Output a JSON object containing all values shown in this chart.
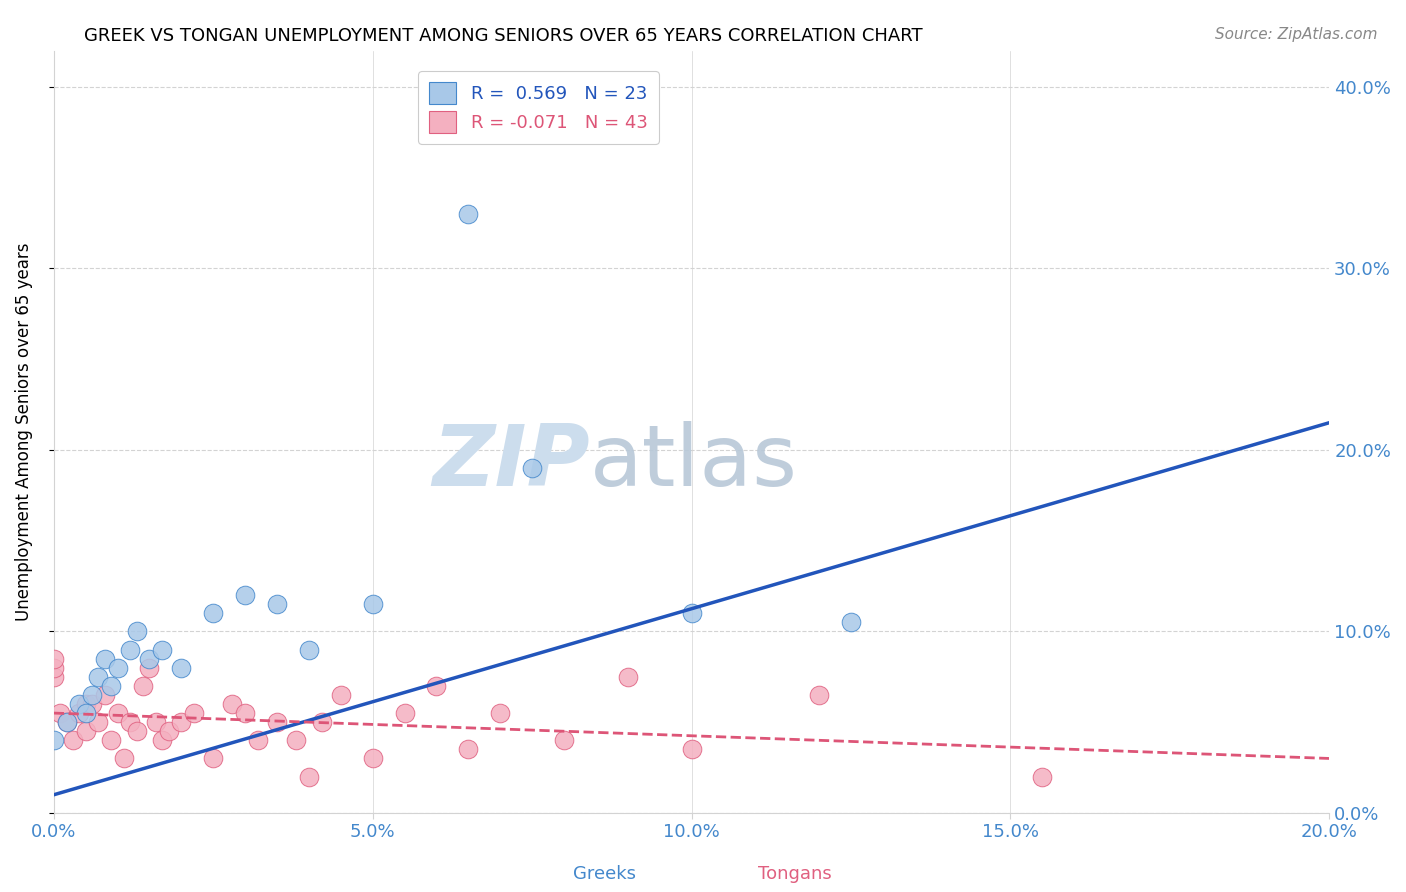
{
  "title": "GREEK VS TONGAN UNEMPLOYMENT AMONG SENIORS OVER 65 YEARS CORRELATION CHART",
  "source": "Source: ZipAtlas.com",
  "ylabel": "Unemployment Among Seniors over 65 years",
  "xlim": [
    0.0,
    0.2
  ],
  "ylim": [
    0.0,
    0.42
  ],
  "xticks": [
    0.0,
    0.05,
    0.1,
    0.15,
    0.2
  ],
  "yticks": [
    0.0,
    0.1,
    0.2,
    0.3,
    0.4
  ],
  "greek_color": "#a8c8e8",
  "tongan_color": "#f4b0c0",
  "greek_edge_color": "#4488cc",
  "tongan_edge_color": "#e06080",
  "greek_line_color": "#2255bb",
  "tongan_line_color": "#dd5577",
  "tick_color": "#4488cc",
  "greek_R": 0.569,
  "greek_N": 23,
  "tongan_R": -0.071,
  "tongan_N": 43,
  "watermark_zip": "ZIP",
  "watermark_atlas": "atlas",
  "watermark_color": "#ccdded",
  "greek_scatter_x": [
    0.0,
    0.002,
    0.004,
    0.005,
    0.006,
    0.007,
    0.008,
    0.009,
    0.01,
    0.012,
    0.013,
    0.015,
    0.017,
    0.02,
    0.025,
    0.03,
    0.035,
    0.04,
    0.05,
    0.065,
    0.075,
    0.1,
    0.125
  ],
  "greek_scatter_y": [
    0.04,
    0.05,
    0.06,
    0.055,
    0.065,
    0.075,
    0.085,
    0.07,
    0.08,
    0.09,
    0.1,
    0.085,
    0.09,
    0.08,
    0.11,
    0.12,
    0.115,
    0.09,
    0.115,
    0.33,
    0.19,
    0.11,
    0.105
  ],
  "tongan_scatter_x": [
    0.0,
    0.0,
    0.0,
    0.001,
    0.002,
    0.003,
    0.004,
    0.005,
    0.005,
    0.006,
    0.007,
    0.008,
    0.009,
    0.01,
    0.011,
    0.012,
    0.013,
    0.014,
    0.015,
    0.016,
    0.017,
    0.018,
    0.02,
    0.022,
    0.025,
    0.028,
    0.03,
    0.032,
    0.035,
    0.038,
    0.04,
    0.042,
    0.045,
    0.05,
    0.055,
    0.06,
    0.065,
    0.07,
    0.08,
    0.09,
    0.1,
    0.12,
    0.155
  ],
  "tongan_scatter_y": [
    0.075,
    0.08,
    0.085,
    0.055,
    0.05,
    0.04,
    0.055,
    0.045,
    0.06,
    0.06,
    0.05,
    0.065,
    0.04,
    0.055,
    0.03,
    0.05,
    0.045,
    0.07,
    0.08,
    0.05,
    0.04,
    0.045,
    0.05,
    0.055,
    0.03,
    0.06,
    0.055,
    0.04,
    0.05,
    0.04,
    0.02,
    0.05,
    0.065,
    0.03,
    0.055,
    0.07,
    0.035,
    0.055,
    0.04,
    0.075,
    0.035,
    0.065,
    0.02
  ],
  "greek_line_x0": 0.0,
  "greek_line_y0": 0.01,
  "greek_line_x1": 0.2,
  "greek_line_y1": 0.215,
  "tongan_line_x0": 0.0,
  "tongan_line_y0": 0.055,
  "tongan_line_x1": 0.2,
  "tongan_line_y1": 0.03
}
